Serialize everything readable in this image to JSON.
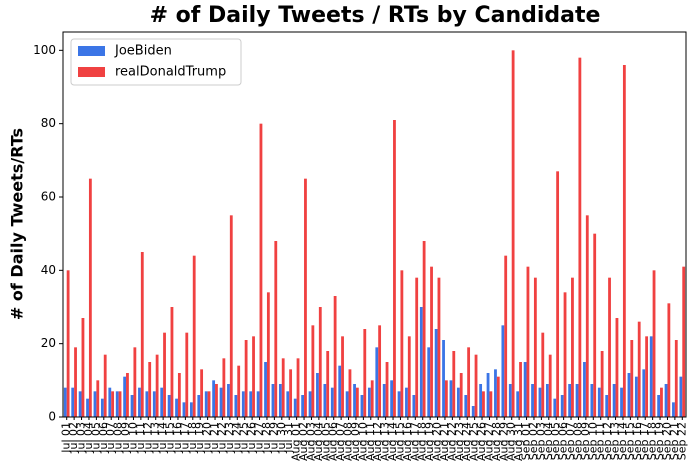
{
  "chart_data": {
    "type": "bar",
    "title": "# of Daily Tweets / RTs by Candidate",
    "y_label": "# of Daily Tweets/RTs",
    "categories": [
      "Jul 01",
      "Jul 02",
      "Jul 03",
      "Jul 04",
      "Jul 05",
      "Jul 06",
      "Jul 07",
      "Jul 08",
      "Jul 09",
      "Jul 10",
      "Jul 11",
      "Jul 12",
      "Jul 13",
      "Jul 14",
      "Jul 15",
      "Jul 16",
      "Jul 17",
      "Jul 18",
      "Jul 19",
      "Jul 20",
      "Jul 21",
      "Jul 22",
      "Jul 23",
      "Jul 24",
      "Jul 25",
      "Jul 26",
      "Jul 27",
      "Jul 28",
      "Jul 29",
      "Jul 30",
      "Jul 31",
      "Aug 01",
      "Aug 02",
      "Aug 03",
      "Aug 04",
      "Aug 05",
      "Aug 06",
      "Aug 07",
      "Aug 08",
      "Aug 09",
      "Aug 10",
      "Aug 11",
      "Aug 12",
      "Aug 13",
      "Aug 14",
      "Aug 15",
      "Aug 16",
      "Aug 17",
      "Aug 18",
      "Aug 19",
      "Aug 20",
      "Aug 21",
      "Aug 22",
      "Aug 23",
      "Aug 24",
      "Aug 25",
      "Aug 26",
      "Aug 27",
      "Aug 28",
      "Aug 29",
      "Aug 30",
      "Aug 31",
      "Sep 01",
      "Sep 02",
      "Sep 03",
      "Sep 04",
      "Sep 05",
      "Sep 06",
      "Sep 07",
      "Sep 08",
      "Sep 09",
      "Sep 10",
      "Sep 11",
      "Sep 12",
      "Sep 13",
      "Sep 14",
      "Sep 15",
      "Sep 16",
      "Sep 17",
      "Sep 18",
      "Sep 19",
      "Sep 20",
      "Sep 21",
      "Sep 22"
    ],
    "series": [
      {
        "name": "JoeBiden",
        "color": "#3b75e6",
        "values": [
          8,
          8,
          7,
          5,
          7,
          5,
          8,
          7,
          11,
          6,
          8,
          7,
          7,
          8,
          6,
          5,
          4,
          4,
          6,
          7,
          10,
          8,
          9,
          6,
          7,
          7,
          7,
          15,
          9,
          9,
          7,
          5,
          6,
          7,
          12,
          9,
          8,
          14,
          7,
          9,
          6,
          8,
          19,
          9,
          10,
          7,
          8,
          6,
          30,
          19,
          24,
          21,
          10,
          8,
          6,
          3,
          9,
          12,
          13,
          25,
          9,
          7,
          15,
          9,
          8,
          9,
          5,
          6,
          9,
          9,
          15,
          9,
          8,
          6,
          9,
          8,
          12,
          11,
          13,
          22,
          6,
          9,
          4,
          11
        ]
      },
      {
        "name": "realDonaldTrump",
        "color": "#f04141",
        "values": [
          40,
          19,
          27,
          65,
          10,
          17,
          7,
          7,
          12,
          19,
          45,
          15,
          17,
          23,
          30,
          12,
          23,
          44,
          13,
          7,
          9,
          16,
          55,
          14,
          21,
          22,
          80,
          34,
          48,
          16,
          13,
          16,
          65,
          25,
          30,
          18,
          33,
          22,
          13,
          8,
          24,
          10,
          25,
          15,
          81,
          40,
          22,
          38,
          48,
          41,
          38,
          10,
          18,
          12,
          19,
          17,
          7,
          7,
          11,
          44,
          100,
          15,
          41,
          38,
          23,
          17,
          67,
          34,
          38,
          98,
          55,
          50,
          18,
          38,
          27,
          96,
          21,
          26,
          22,
          40,
          8,
          31,
          21,
          41
        ]
      }
    ],
    "ylim": [
      0,
      105
    ],
    "yticks": [
      0,
      20,
      40,
      60,
      80,
      100
    ],
    "legend": "upper left"
  }
}
